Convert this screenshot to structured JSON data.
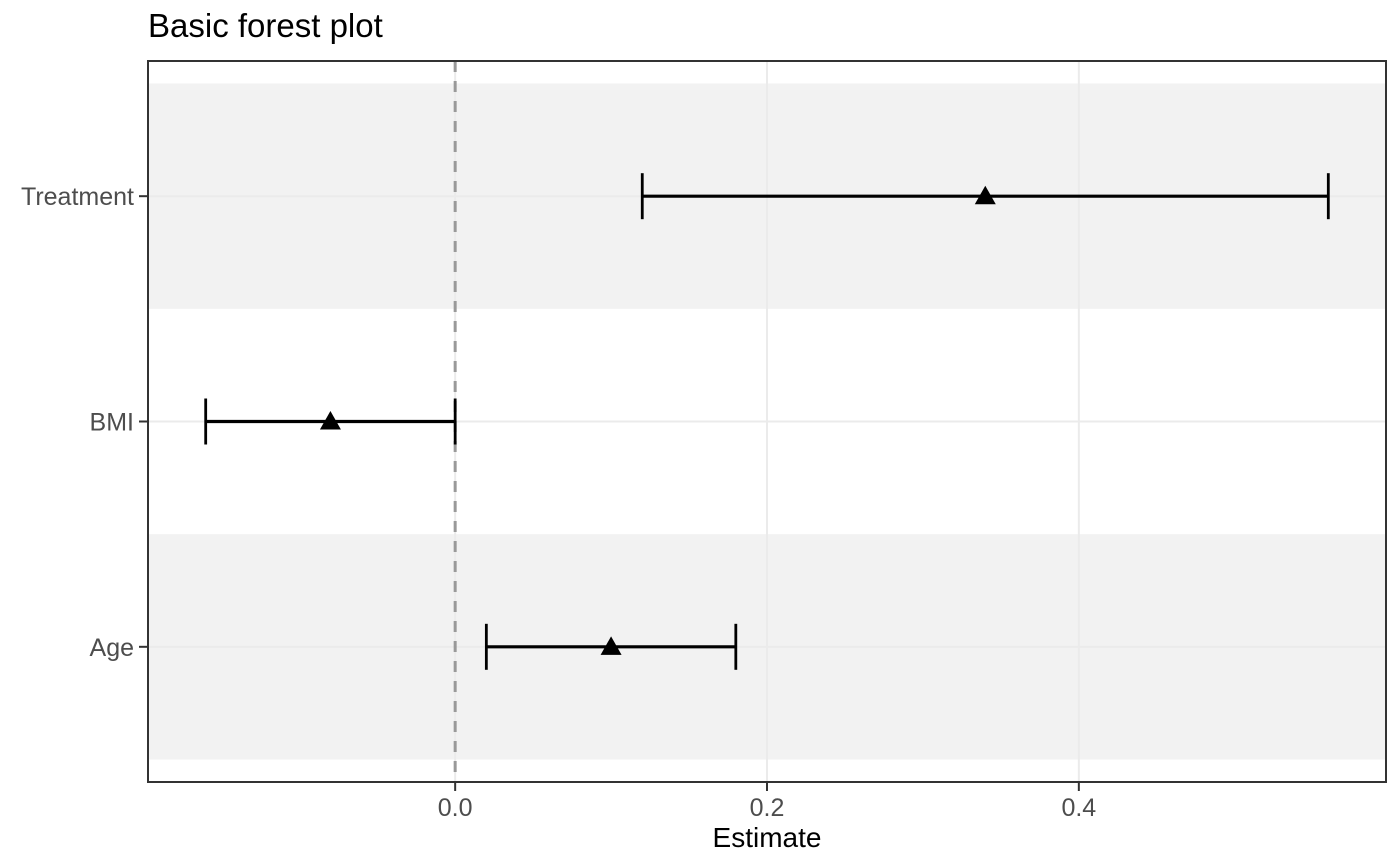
{
  "chart_data": {
    "type": "scatter",
    "subtype": "forest-plot",
    "title": "Basic forest plot",
    "xlabel": "Estimate",
    "ylabel": "",
    "categories": [
      "Treatment",
      "BMI",
      "Age"
    ],
    "rows": [
      {
        "label": "Treatment",
        "estimate": 0.34,
        "conf_low": 0.12,
        "conf_high": 0.56
      },
      {
        "label": "BMI",
        "estimate": -0.08,
        "conf_low": -0.16,
        "conf_high": 0.0
      },
      {
        "label": "Age",
        "estimate": 0.1,
        "conf_low": 0.02,
        "conf_high": 0.18
      }
    ],
    "x_ticks": [
      0.0,
      0.2,
      0.4
    ],
    "x_tick_labels": [
      "0.0",
      "0.2",
      "0.4"
    ],
    "xlim": [
      -0.197,
      0.597
    ],
    "reference_line": {
      "x": 0.0,
      "style": "dashed"
    },
    "marker": "filled-triangle-up",
    "grid": "major-only",
    "legend": "none",
    "colors": {
      "background": "#FFFFFF",
      "stripe": "#F2F2F2",
      "gridline": "#EBEBEB",
      "reference_line": "#999999",
      "panel_border": "#333333",
      "tick_mark": "#333333",
      "axis_text": "#4D4D4D",
      "axis_title_text": "#000000",
      "title_text": "#000000",
      "data": "#000000"
    }
  }
}
